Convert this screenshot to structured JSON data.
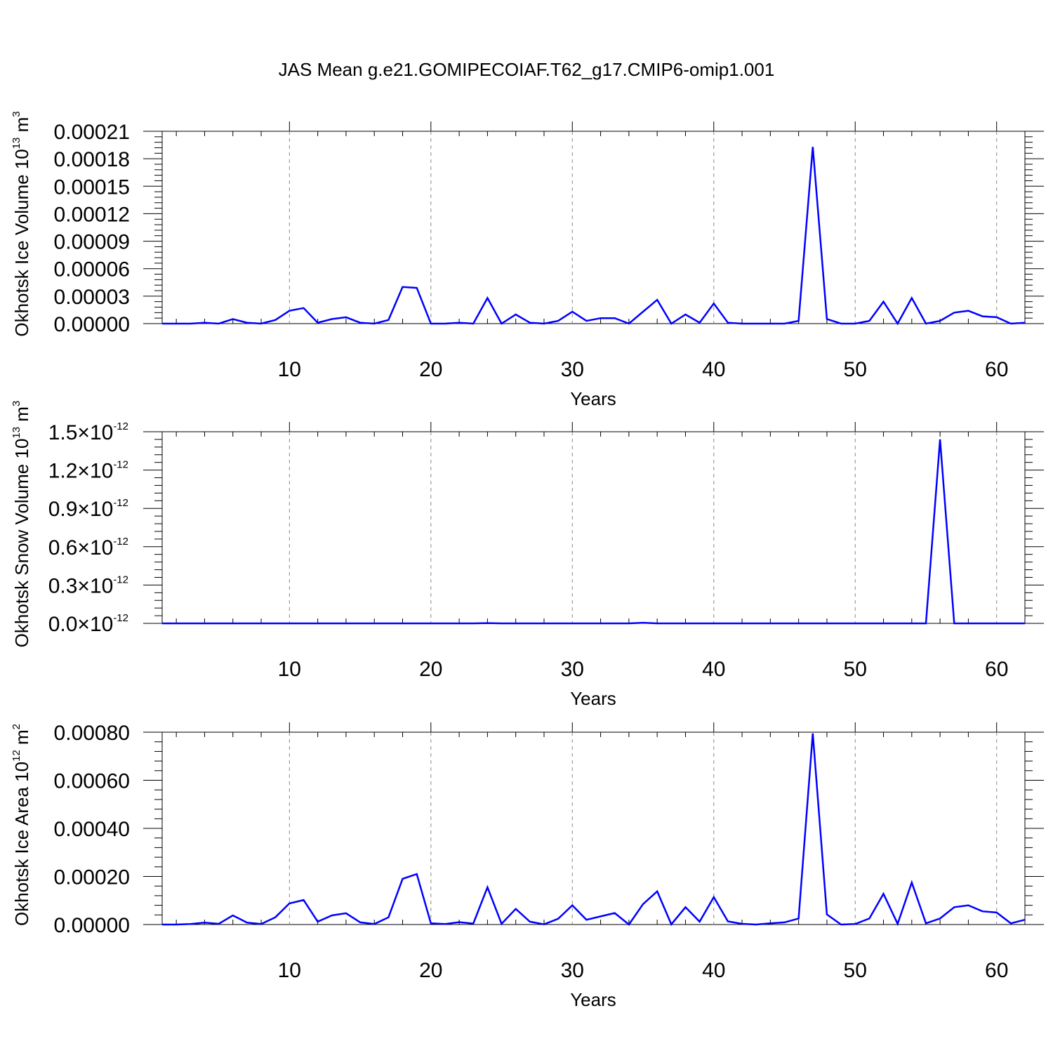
{
  "title": "JAS Mean g.e21.GOMIPECOIAF.T62_g17.CMIP6-omip1.001",
  "colors": {
    "line": "#0000ff",
    "axis": "#000000",
    "grid": "#888888"
  },
  "chart_data": [
    {
      "type": "line",
      "xlabel": "Years",
      "ylabel": {
        "text": "Okhotsk Ice Volume 10",
        "exp": "13",
        "unit": " m",
        "unit_exp": "3"
      },
      "xlim": [
        1,
        62
      ],
      "ylim": [
        0,
        0.00021
      ],
      "x_ticks": [
        "10",
        "20",
        "30",
        "40",
        "50",
        "60"
      ],
      "y_ticks": [
        "0.00000",
        "0.00003",
        "0.00006",
        "0.00009",
        "0.00012",
        "0.00015",
        "0.00018",
        "0.00021"
      ],
      "grid": "vertical dashed at major x ticks",
      "series": [
        {
          "values": [
            0.0,
            0.0,
            0.0,
            1e-06,
            0.0,
            5e-06,
            1e-06,
            0.0,
            4e-06,
            1.4e-05,
            1.7e-05,
            1e-06,
            5e-06,
            7e-06,
            1e-06,
            0.0,
            4e-06,
            4e-05,
            3.9e-05,
            0.0,
            0.0,
            1e-06,
            0.0,
            2.8e-05,
            0.0,
            1e-05,
            1e-06,
            0.0,
            3e-06,
            1.3e-05,
            3e-06,
            6e-06,
            6e-06,
            0.0,
            1.3e-05,
            2.6e-05,
            0.0,
            1e-05,
            1e-06,
            2.2e-05,
            1e-06,
            0.0,
            0.0,
            0.0,
            0.0,
            3e-06,
            0.000193,
            5e-06,
            0.0,
            0.0,
            3e-06,
            2.4e-05,
            0.0,
            2.8e-05,
            0.0,
            3e-06,
            1.2e-05,
            1.4e-05,
            8e-06,
            7e-06,
            0.0,
            1e-06
          ]
        }
      ]
    },
    {
      "type": "line",
      "xlabel": "Years",
      "ylabel": {
        "text": "Okhotsk Snow Volume 10",
        "exp": "13",
        "unit": " m",
        "unit_exp": "3"
      },
      "xlim": [
        1,
        62
      ],
      "ylim": [
        0,
        1.5
      ],
      "y_scale_note": "values in units of 10^-12",
      "x_ticks": [
        "10",
        "20",
        "30",
        "40",
        "50",
        "60"
      ],
      "y_ticks": [
        "0.0",
        "0.3",
        "0.6",
        "0.9",
        "1.2",
        "1.5"
      ],
      "y_tick_suffix": {
        "times": "×10",
        "exp": "-12"
      },
      "grid": "vertical dashed at major x ticks",
      "series": [
        {
          "values": [
            0,
            0,
            0,
            0,
            0,
            0,
            0,
            0,
            0,
            0,
            0,
            0,
            0,
            0,
            0,
            0,
            0,
            0,
            0,
            0,
            0,
            0,
            0,
            0.002,
            0,
            0,
            0,
            0,
            0,
            0,
            0,
            0,
            0,
            0,
            0.005,
            0,
            0,
            0,
            0,
            0,
            0,
            0,
            0,
            0,
            0,
            0,
            0,
            0,
            0,
            0,
            0,
            0,
            0,
            0,
            0,
            1.44,
            0,
            0,
            0,
            0,
            0,
            0
          ]
        }
      ]
    },
    {
      "type": "line",
      "xlabel": "Years",
      "ylabel": {
        "text": "Okhotsk Ice Area 10",
        "exp": "12",
        "unit": " m",
        "unit_exp": "2"
      },
      "xlim": [
        1,
        62
      ],
      "ylim": [
        0,
        0.0008
      ],
      "x_ticks": [
        "10",
        "20",
        "30",
        "40",
        "50",
        "60"
      ],
      "y_ticks": [
        "0.00000",
        "0.00020",
        "0.00040",
        "0.00060",
        "0.00080"
      ],
      "grid": "vertical dashed at major x ticks",
      "series": [
        {
          "values": [
            0.0,
            0.0,
            2e-06,
            8e-06,
            3e-06,
            3.8e-05,
            8e-06,
            2e-06,
            3e-05,
            8.8e-05,
            0.000102,
            1.2e-05,
            3.8e-05,
            4.7e-05,
            9e-06,
            2e-06,
            3e-05,
            0.00019,
            0.00021,
            5e-06,
            2e-06,
            1e-05,
            4e-06,
            0.000155,
            3e-06,
            6.5e-05,
            1.2e-05,
            1e-06,
            2.4e-05,
            8e-05,
            2e-05,
            3.4e-05,
            4.8e-05,
            0.0,
            8.5e-05,
            0.000138,
            1e-06,
            7.2e-05,
            1.2e-05,
            0.000114,
            1.3e-05,
            3e-06,
            0.0,
            5e-06,
            9e-06,
            2.5e-05,
            0.000795,
            4.2e-05,
            0.0,
            2e-06,
            2.5e-05,
            0.000128,
            3e-06,
            0.000175,
            5e-06,
            2.5e-05,
            7.2e-05,
            8e-05,
            5.5e-05,
            5e-05,
            5e-06,
            2e-05
          ]
        }
      ]
    }
  ]
}
